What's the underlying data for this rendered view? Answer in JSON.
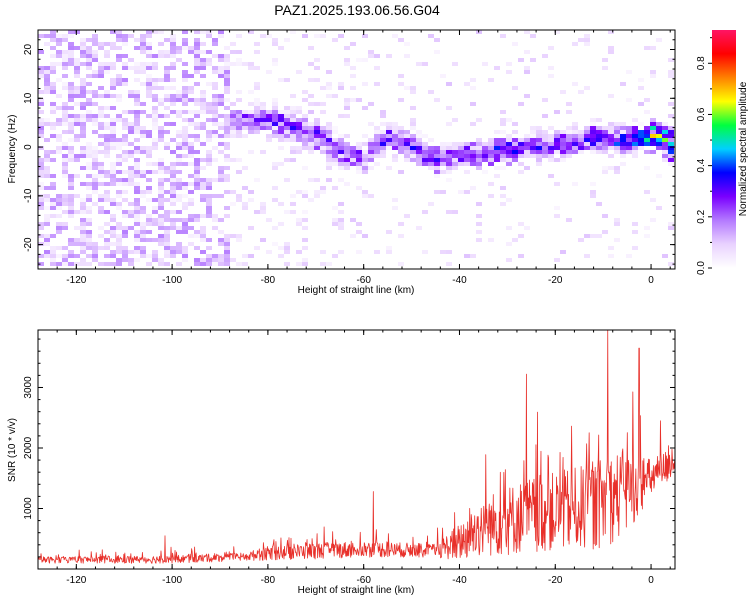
{
  "title": "PAZ1.2025.193.06.56.G04",
  "colors": {
    "axis": "#000000",
    "snr_line": "#e8302a",
    "colormap": [
      "#ffffff",
      "#e9d2ff",
      "#b47aff",
      "#7a00ff",
      "#0000ff",
      "#00d0ff",
      "#00ff40",
      "#ffff00",
      "#ff8000",
      "#ff0000",
      "#ff1464"
    ]
  },
  "chart_data": [
    {
      "type": "heatmap",
      "xlabel": "Height of straight line (km)",
      "ylabel": "Frequency (Hz)",
      "xlim": [
        -128,
        5
      ],
      "ylim": [
        -25,
        24
      ],
      "xticks": [
        -120,
        -100,
        -80,
        -60,
        -40,
        -20,
        0
      ],
      "yticks": [
        -20,
        -10,
        0,
        10,
        20
      ],
      "colorbar": {
        "label": "Normalized spectral amplitude",
        "range": [
          0.0,
          0.93
        ],
        "ticks": [
          0.0,
          0.2,
          0.4,
          0.6,
          0.8
        ]
      },
      "signal_track": {
        "x": [
          -85,
          -80,
          -75,
          -70,
          -65,
          -60,
          -55,
          -50,
          -45,
          -40,
          -35,
          -30,
          -25,
          -20,
          -15,
          -10,
          -5,
          0,
          5
        ],
        "frequency": [
          5,
          6,
          4,
          2,
          -1,
          -3,
          2,
          0,
          -3,
          -2,
          -2,
          -1,
          0,
          0,
          1,
          2,
          1,
          2,
          0
        ],
        "amplitude": [
          0.25,
          0.3,
          0.3,
          0.28,
          0.26,
          0.24,
          0.3,
          0.32,
          0.3,
          0.3,
          0.32,
          0.33,
          0.3,
          0.3,
          0.33,
          0.33,
          0.35,
          0.55,
          0.65
        ]
      }
    },
    {
      "type": "line",
      "xlabel": "Height of straight line (km)",
      "ylabel": "SNR (10 * v/v)",
      "xlim": [
        -128,
        5
      ],
      "ylim": [
        0,
        3950
      ],
      "xticks": [
        -120,
        -100,
        -80,
        -60,
        -40,
        -20,
        0
      ],
      "yticks": [
        1000,
        2000,
        3000
      ],
      "envelope": {
        "x": [
          -128,
          -100,
          -85,
          -80,
          -70,
          -60,
          -45,
          -40,
          -35,
          -30,
          -25,
          -20,
          -15,
          -10,
          -5,
          0,
          5
        ],
        "base": [
          150,
          160,
          200,
          260,
          300,
          330,
          300,
          450,
          700,
          800,
          900,
          950,
          1000,
          1100,
          1300,
          1500,
          1800
        ],
        "amplitude": [
          120,
          150,
          150,
          260,
          300,
          300,
          250,
          700,
          1100,
          1300,
          1400,
          1450,
          1550,
          1700,
          1600,
          700,
          600
        ]
      },
      "peaks": [
        {
          "x": -101.5,
          "y": 550
        },
        {
          "x": -58,
          "y": 1280
        },
        {
          "x": -26,
          "y": 3220
        },
        {
          "x": -9,
          "y": 3950
        },
        {
          "x": -2.5,
          "y": 3650
        },
        {
          "x": 2,
          "y": 2450
        }
      ]
    }
  ]
}
